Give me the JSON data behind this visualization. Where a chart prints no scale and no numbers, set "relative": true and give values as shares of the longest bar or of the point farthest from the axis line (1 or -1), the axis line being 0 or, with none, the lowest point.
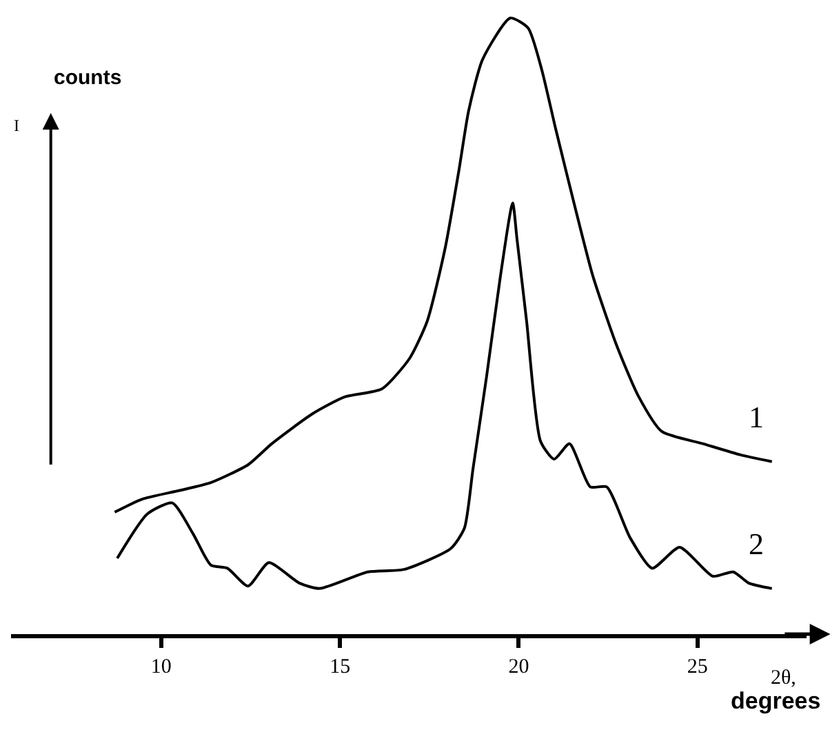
{
  "chart_data": {
    "type": "line",
    "relative": true,
    "xlabel": "2θ, degrees",
    "ylabel": "counts",
    "annotations": [
      "I"
    ],
    "xlim": [
      5.8,
      28.05
    ],
    "xticks": [
      10,
      15,
      20,
      25
    ],
    "marker": "none",
    "line_style": "solid",
    "series": [
      {
        "name": "1",
        "color": "#000000",
        "x": [
          8.7,
          9.46,
          10.5,
          11.39,
          12.43,
          13.09,
          14.24,
          15.13,
          16.17,
          16.94,
          17.44,
          17.94,
          18.33,
          18.6,
          18.99,
          19.76,
          20.26,
          20.64,
          21.03,
          21.57,
          22.07,
          22.73,
          23.34,
          24.0,
          25.16,
          26.2,
          27.08
        ],
        "values": [
          0.198,
          0.219,
          0.233,
          0.246,
          0.275,
          0.309,
          0.358,
          0.385,
          0.398,
          0.447,
          0.508,
          0.626,
          0.754,
          0.85,
          0.933,
          1.0,
          0.984,
          0.917,
          0.821,
          0.694,
          0.582,
          0.47,
          0.387,
          0.329,
          0.309,
          0.291,
          0.28
        ]
      },
      {
        "name": "2",
        "color": "#000000",
        "x": [
          8.77,
          9.61,
          10.31,
          10.89,
          11.39,
          11.85,
          12.43,
          13.01,
          13.86,
          14.43,
          15.78,
          16.79,
          18.1,
          18.48,
          18.72,
          19.1,
          19.49,
          19.83,
          19.95,
          20.22,
          20.61,
          20.99,
          21.42,
          22.0,
          22.46,
          23.11,
          23.73,
          24.5,
          25.43,
          26.0,
          26.43,
          27.08
        ],
        "values": [
          0.123,
          0.195,
          0.213,
          0.163,
          0.112,
          0.107,
          0.078,
          0.116,
          0.083,
          0.074,
          0.101,
          0.105,
          0.139,
          0.172,
          0.268,
          0.418,
          0.582,
          0.7,
          0.642,
          0.508,
          0.313,
          0.284,
          0.309,
          0.239,
          0.239,
          0.157,
          0.107,
          0.141,
          0.094,
          0.101,
          0.083,
          0.074
        ]
      }
    ]
  }
}
